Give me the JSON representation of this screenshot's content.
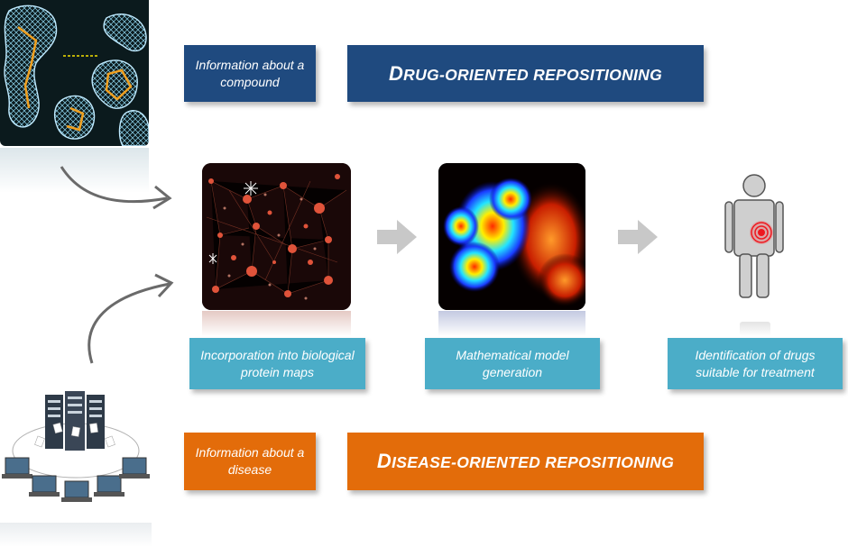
{
  "drug": {
    "info_label": "Information about a compound",
    "title_first": "D",
    "title_rest": "rug-oriented repositioning",
    "color": "#1f4a7f"
  },
  "disease": {
    "info_label": "Information about a disease",
    "title_first": "D",
    "title_rest": "isease-oriented repositioning",
    "color": "#e36c0a"
  },
  "steps": [
    {
      "label": "Incorporation into biological protein maps",
      "image": "protein-network"
    },
    {
      "label": "Mathematical model generation",
      "image": "heatmap"
    },
    {
      "label": "Identification of drugs suitable for treatment",
      "image": "human-figure-target"
    }
  ],
  "colors": {
    "step_box": "#4badc8",
    "arrow": "#c8c8c8"
  }
}
